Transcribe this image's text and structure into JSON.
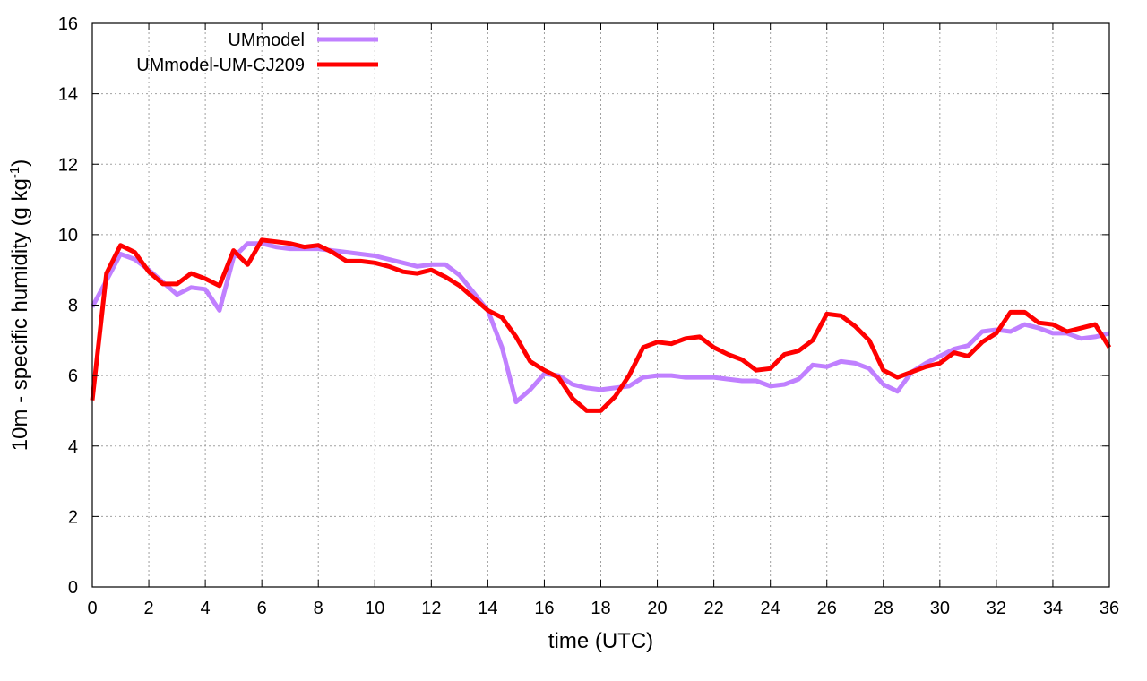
{
  "chart_data": {
    "type": "line",
    "xlabel": "time (UTC)",
    "ylabel": {
      "main": "10m - specific humidity (g kg",
      "sup": "-1",
      "end": ")"
    },
    "xlim": [
      0,
      36
    ],
    "ylim": [
      0,
      16
    ],
    "xticks": [
      "0",
      "2",
      "4",
      "6",
      "8",
      "10",
      "12",
      "14",
      "16",
      "18",
      "20",
      "22",
      "24",
      "26",
      "28",
      "30",
      "32",
      "34",
      "36"
    ],
    "yticks": [
      "0",
      "2",
      "4",
      "6",
      "8",
      "10",
      "12",
      "14",
      "16"
    ],
    "grid": true,
    "legend_position": "top-left",
    "series": [
      {
        "name": "UMmodel",
        "color": "#c080ff",
        "x": [
          0,
          0.5,
          1,
          1.5,
          2,
          2.5,
          3,
          3.5,
          4,
          4.5,
          5,
          5.5,
          6,
          6.5,
          7,
          7.5,
          8,
          8.5,
          9,
          9.5,
          10,
          10.5,
          11,
          11.5,
          12,
          12.5,
          13,
          13.5,
          14,
          14.5,
          15,
          15.5,
          16,
          16.5,
          17,
          17.5,
          18,
          18.5,
          19,
          19.5,
          20,
          20.5,
          21,
          21.5,
          22,
          22.5,
          23,
          23.5,
          24,
          24.5,
          25,
          25.5,
          26,
          26.5,
          27,
          27.5,
          28,
          28.5,
          29,
          29.5,
          30,
          30.5,
          31,
          31.5,
          32,
          32.5,
          33,
          33.5,
          34,
          34.5,
          35,
          35.5,
          36
        ],
        "y": [
          7.95,
          8.7,
          9.45,
          9.3,
          9.0,
          8.65,
          8.3,
          8.5,
          8.45,
          7.85,
          9.35,
          9.75,
          9.75,
          9.65,
          9.6,
          9.6,
          9.6,
          9.55,
          9.5,
          9.45,
          9.4,
          9.3,
          9.2,
          9.1,
          9.15,
          9.15,
          8.85,
          8.35,
          7.85,
          6.8,
          5.25,
          5.6,
          6.05,
          6.0,
          5.75,
          5.65,
          5.6,
          5.65,
          5.7,
          5.95,
          6.0,
          6.0,
          5.95,
          5.95,
          5.95,
          5.9,
          5.85,
          5.85,
          5.7,
          5.75,
          5.9,
          6.3,
          6.25,
          6.4,
          6.35,
          6.2,
          5.75,
          5.55,
          6.1,
          6.35,
          6.55,
          6.75,
          6.85,
          7.25,
          7.3,
          7.25,
          7.45,
          7.35,
          7.2,
          7.2,
          7.05,
          7.1,
          7.2
        ]
      },
      {
        "name": "UMmodel-UM-CJ209",
        "color": "#ff0000",
        "x": [
          0,
          0.5,
          1,
          1.5,
          2,
          2.5,
          3,
          3.5,
          4,
          4.5,
          5,
          5.5,
          6,
          6.5,
          7,
          7.5,
          8,
          8.5,
          9,
          9.5,
          10,
          10.5,
          11,
          11.5,
          12,
          12.5,
          13,
          13.5,
          14,
          14.5,
          15,
          15.5,
          16,
          16.5,
          17,
          17.5,
          18,
          18.5,
          19,
          19.5,
          20,
          20.5,
          21,
          21.5,
          22,
          22.5,
          23,
          23.5,
          24,
          24.5,
          25,
          25.5,
          26,
          26.5,
          27,
          27.5,
          28,
          28.5,
          29,
          29.5,
          30,
          30.5,
          31,
          31.5,
          32,
          32.5,
          33,
          33.5,
          34,
          34.5,
          35,
          35.5,
          36
        ],
        "y": [
          5.3,
          8.9,
          9.7,
          9.5,
          8.95,
          8.6,
          8.6,
          8.9,
          8.75,
          8.55,
          9.55,
          9.15,
          9.85,
          9.8,
          9.75,
          9.65,
          9.7,
          9.5,
          9.25,
          9.25,
          9.2,
          9.1,
          8.95,
          8.9,
          9.0,
          8.8,
          8.55,
          8.2,
          7.85,
          7.65,
          7.1,
          6.4,
          6.15,
          5.95,
          5.35,
          5.0,
          5.0,
          5.4,
          6.0,
          6.8,
          6.95,
          6.9,
          7.05,
          7.1,
          6.8,
          6.6,
          6.45,
          6.15,
          6.2,
          6.6,
          6.7,
          7.0,
          7.75,
          7.7,
          7.4,
          7.0,
          6.15,
          5.95,
          6.1,
          6.25,
          6.35,
          6.65,
          6.55,
          6.95,
          7.2,
          7.8,
          7.8,
          7.5,
          7.45,
          7.25,
          7.35,
          7.45,
          6.8
        ]
      }
    ]
  }
}
